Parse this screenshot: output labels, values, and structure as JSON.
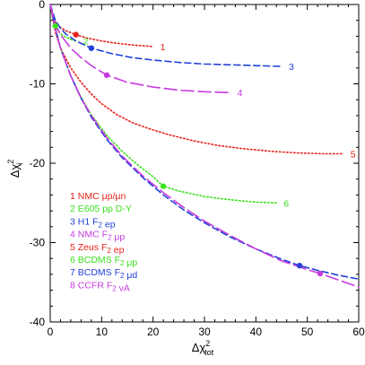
{
  "chart_data": {
    "type": "line",
    "xlabel": "Δχ²tot",
    "ylabel": "Δχ²i",
    "xlim": [
      0,
      60
    ],
    "ylim": [
      -40,
      0
    ],
    "x_ticks": [
      0,
      10,
      20,
      30,
      40,
      50,
      60
    ],
    "y_ticks": [
      0,
      -10,
      -20,
      -30,
      -40
    ],
    "grid": false,
    "legend_position": "bottom-left",
    "legend": [
      "1 NMC μp/μn",
      "2 E605 pp D-Y",
      "3 H1 F₂ ep",
      "4 NMC F₂ μp",
      "5 Zeus F₂ ep",
      "6 BCDMS F₂ μp",
      "7 BCDMS F₂ μd",
      "8 CCFR F₂ νA"
    ],
    "series": [
      {
        "name": "1",
        "color": "#e8201a",
        "dash": "dotted",
        "x": [
          0,
          0.5,
          1,
          2,
          3,
          5,
          7,
          10,
          13,
          16,
          20
        ],
        "y": [
          0,
          -1.6,
          -2.2,
          -2.9,
          -3.3,
          -3.8,
          -4.2,
          -4.6,
          -4.9,
          -5.1,
          -5.3
        ],
        "marker": [
          5,
          -3.8
        ]
      },
      {
        "name": "2",
        "color": "#39e01d",
        "dash": "dotted",
        "x": [
          0,
          0.3,
          0.6,
          1,
          1.5,
          2,
          3,
          4,
          5
        ],
        "y": [
          0,
          -1.2,
          -2.0,
          -2.7,
          -3.3,
          -3.7,
          -4.1,
          -4.4,
          -4.6
        ],
        "marker": [
          1,
          -2.7
        ]
      },
      {
        "name": "3",
        "color": "#2440d8",
        "dash": "dashed",
        "x": [
          0,
          1,
          2,
          3,
          5,
          8,
          12,
          16,
          20,
          25,
          30,
          35,
          40,
          45
        ],
        "y": [
          0,
          -2.0,
          -3.0,
          -3.7,
          -4.6,
          -5.5,
          -6.2,
          -6.7,
          -7.0,
          -7.3,
          -7.5,
          -7.6,
          -7.7,
          -7.8
        ],
        "marker": [
          8,
          -5.5
        ]
      },
      {
        "name": "4",
        "color": "#c63ae0",
        "dash": "long-dashed",
        "x": [
          0,
          1,
          2,
          4,
          6,
          8,
          11,
          15,
          20,
          25,
          30,
          35
        ],
        "y": [
          0,
          -2.5,
          -3.8,
          -5.5,
          -6.7,
          -7.7,
          -8.9,
          -9.8,
          -10.4,
          -10.8,
          -11.0,
          -11.1
        ],
        "marker": [
          11,
          -8.9
        ]
      },
      {
        "name": "5",
        "color": "#e8201a",
        "dash": "dotted",
        "x": [
          0,
          1,
          2,
          4,
          6,
          8,
          10,
          13,
          16,
          19,
          23,
          28,
          33,
          38,
          43,
          48,
          53,
          57
        ],
        "y": [
          0,
          -3.5,
          -5.5,
          -8.0,
          -9.8,
          -11.3,
          -12.5,
          -13.9,
          -14.9,
          -15.6,
          -16.4,
          -17.2,
          -17.8,
          -18.2,
          -18.5,
          -18.7,
          -18.8,
          -18.8
        ]
      },
      {
        "name": "6",
        "color": "#39e01d",
        "dash": "dotted",
        "x": [
          0,
          1,
          2,
          4,
          6,
          8,
          11,
          14,
          17,
          20,
          22,
          25,
          30,
          35,
          40,
          44
        ],
        "y": [
          0,
          -3.0,
          -5.5,
          -9.0,
          -11.7,
          -13.9,
          -16.5,
          -18.5,
          -20.2,
          -21.7,
          -22.9,
          -23.5,
          -24.2,
          -24.6,
          -24.9,
          -25.0
        ],
        "marker": [
          22,
          -22.9
        ]
      },
      {
        "name": "7",
        "color": "#2440d8",
        "dash": "dashed",
        "x": [
          0,
          1,
          2,
          4,
          6,
          8,
          11,
          14,
          18,
          22,
          26,
          30,
          35,
          40,
          45,
          48.5,
          52,
          56,
          60
        ],
        "y": [
          0,
          -3.0,
          -5.5,
          -9.0,
          -11.8,
          -14.2,
          -17.0,
          -19.3,
          -21.8,
          -24.0,
          -25.9,
          -27.5,
          -29.3,
          -30.8,
          -32.1,
          -32.9,
          -33.5,
          -34.1,
          -34.6
        ],
        "marker": [
          48.5,
          -32.9
        ]
      },
      {
        "name": "8",
        "color": "#c63ae0",
        "dash": "long-dashed",
        "x": [
          0,
          1,
          2,
          4,
          6,
          8,
          11,
          14,
          18,
          22,
          26,
          30,
          35,
          40,
          45,
          50,
          52.5,
          56,
          60
        ],
        "y": [
          0,
          -3.0,
          -5.5,
          -9.0,
          -11.8,
          -14.0,
          -16.8,
          -19.1,
          -21.6,
          -23.7,
          -25.6,
          -27.3,
          -29.1,
          -30.8,
          -32.3,
          -33.4,
          -33.9,
          -34.7,
          -35.6
        ],
        "marker": [
          52.5,
          -33.9
        ]
      }
    ]
  }
}
